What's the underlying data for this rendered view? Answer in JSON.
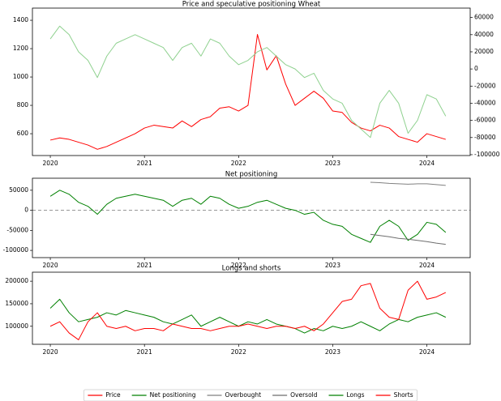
{
  "chart_data": [
    {
      "type": "line",
      "title": "Price and speculative positioning Wheat",
      "x": [
        2020.0,
        2020.1,
        2020.2,
        2020.3,
        2020.4,
        2020.5,
        2020.6,
        2020.7,
        2020.8,
        2020.9,
        2021.0,
        2021.1,
        2021.2,
        2021.3,
        2021.4,
        2021.5,
        2021.6,
        2021.7,
        2021.8,
        2021.9,
        2022.0,
        2022.1,
        2022.2,
        2022.3,
        2022.4,
        2022.5,
        2022.6,
        2022.7,
        2022.8,
        2022.9,
        2023.0,
        2023.1,
        2023.2,
        2023.3,
        2023.4,
        2023.5,
        2023.6,
        2023.7,
        2023.8,
        2023.9,
        2024.0,
        2024.1,
        2024.2
      ],
      "xlim": [
        2019.81,
        2024.46
      ],
      "xticks": [
        2020,
        2021,
        2022,
        2023,
        2024
      ],
      "ylim": [
        446,
        1486
      ],
      "yticks": [
        600,
        800,
        1000,
        1200,
        1400
      ],
      "y2lim": [
        -101000,
        71000
      ],
      "y2ticks": [
        -100000,
        -80000,
        -60000,
        -40000,
        -20000,
        0,
        20000,
        40000,
        60000
      ],
      "series": [
        {
          "name": "Price",
          "color": "#ff0000",
          "values": [
            555,
            570,
            560,
            540,
            520,
            490,
            510,
            540,
            570,
            600,
            640,
            660,
            650,
            640,
            690,
            650,
            700,
            720,
            780,
            790,
            760,
            800,
            1300,
            1050,
            1150,
            950,
            800,
            850,
            900,
            850,
            760,
            750,
            680,
            640,
            620,
            660,
            640,
            580,
            560,
            540,
            600,
            580,
            560
          ]
        },
        {
          "name": "Net positioning",
          "color": "#8fd18f",
          "axis": "y2",
          "values": [
            35000,
            50000,
            40000,
            20000,
            10000,
            -10000,
            15000,
            30000,
            35000,
            40000,
            35000,
            30000,
            25000,
            10000,
            25000,
            30000,
            15000,
            35000,
            30000,
            15000,
            5000,
            10000,
            20000,
            25000,
            15000,
            5000,
            0,
            -10000,
            -5000,
            -25000,
            -35000,
            -40000,
            -60000,
            -70000,
            -80000,
            -40000,
            -25000,
            -40000,
            -75000,
            -60000,
            -30000,
            -35000,
            -55000
          ]
        }
      ]
    },
    {
      "type": "line",
      "title": "Net positioning",
      "x": [
        2020.0,
        2020.1,
        2020.2,
        2020.3,
        2020.4,
        2020.5,
        2020.6,
        2020.7,
        2020.8,
        2020.9,
        2021.0,
        2021.1,
        2021.2,
        2021.3,
        2021.4,
        2021.5,
        2021.6,
        2021.7,
        2021.8,
        2021.9,
        2022.0,
        2022.1,
        2022.2,
        2022.3,
        2022.4,
        2022.5,
        2022.6,
        2022.7,
        2022.8,
        2022.9,
        2023.0,
        2023.1,
        2023.2,
        2023.3,
        2023.4,
        2023.5,
        2023.6,
        2023.7,
        2023.8,
        2023.9,
        2024.0,
        2024.1,
        2024.2
      ],
      "xlim": [
        2019.81,
        2024.46
      ],
      "xticks": [
        2020,
        2021,
        2022,
        2023,
        2024
      ],
      "ylim": [
        -118000,
        80000
      ],
      "yticks": [
        -100000,
        -50000,
        0,
        50000
      ],
      "reference_line": 0,
      "series": [
        {
          "name": "Net positioning",
          "color": "#008000",
          "values": [
            35000,
            50000,
            40000,
            20000,
            10000,
            -10000,
            15000,
            30000,
            35000,
            40000,
            35000,
            30000,
            25000,
            10000,
            25000,
            30000,
            15000,
            35000,
            30000,
            15000,
            5000,
            10000,
            20000,
            25000,
            15000,
            5000,
            0,
            -10000,
            -5000,
            -25000,
            -35000,
            -40000,
            -60000,
            -70000,
            -80000,
            -40000,
            -25000,
            -40000,
            -75000,
            -60000,
            -30000,
            -35000,
            -55000
          ]
        },
        {
          "name": "Overbought",
          "color": "#808080",
          "values": [
            null,
            null,
            null,
            null,
            null,
            null,
            null,
            null,
            null,
            null,
            null,
            null,
            null,
            null,
            null,
            null,
            null,
            null,
            null,
            null,
            null,
            null,
            null,
            null,
            null,
            null,
            null,
            null,
            null,
            null,
            null,
            null,
            null,
            null,
            70000,
            69000,
            67000,
            66000,
            65000,
            66000,
            66000,
            64000,
            62000
          ]
        },
        {
          "name": "Oversold",
          "color": "#6e6e6e",
          "values": [
            null,
            null,
            null,
            null,
            null,
            null,
            null,
            null,
            null,
            null,
            null,
            null,
            null,
            null,
            null,
            null,
            null,
            null,
            null,
            null,
            null,
            null,
            null,
            null,
            null,
            null,
            null,
            null,
            null,
            null,
            null,
            null,
            null,
            null,
            -60000,
            -63000,
            -66000,
            -70000,
            -72000,
            -75000,
            -78000,
            -82000,
            -85000
          ]
        }
      ]
    },
    {
      "type": "line",
      "title": "Longs and shorts",
      "x": [
        2020.0,
        2020.1,
        2020.2,
        2020.3,
        2020.4,
        2020.5,
        2020.6,
        2020.7,
        2020.8,
        2020.9,
        2021.0,
        2021.1,
        2021.2,
        2021.3,
        2021.4,
        2021.5,
        2021.6,
        2021.7,
        2021.8,
        2021.9,
        2022.0,
        2022.1,
        2022.2,
        2022.3,
        2022.4,
        2022.5,
        2022.6,
        2022.7,
        2022.8,
        2022.9,
        2023.0,
        2023.1,
        2023.2,
        2023.3,
        2023.4,
        2023.5,
        2023.6,
        2023.7,
        2023.8,
        2023.9,
        2024.0,
        2024.1,
        2024.2
      ],
      "xlim": [
        2019.81,
        2024.46
      ],
      "xticks": [
        2020,
        2021,
        2022,
        2023,
        2024
      ],
      "ylim": [
        60000,
        220000
      ],
      "yticks": [
        100000,
        150000,
        200000
      ],
      "series": [
        {
          "name": "Longs",
          "color": "#008000",
          "values": [
            140000,
            160000,
            130000,
            110000,
            115000,
            120000,
            130000,
            125000,
            135000,
            130000,
            125000,
            120000,
            110000,
            105000,
            115000,
            125000,
            100000,
            110000,
            120000,
            110000,
            100000,
            110000,
            105000,
            115000,
            105000,
            100000,
            95000,
            85000,
            95000,
            90000,
            100000,
            95000,
            100000,
            110000,
            100000,
            90000,
            105000,
            115000,
            110000,
            120000,
            125000,
            130000,
            120000
          ]
        },
        {
          "name": "Shorts",
          "color": "#ff0000",
          "values": [
            100000,
            110000,
            85000,
            70000,
            110000,
            130000,
            100000,
            95000,
            100000,
            90000,
            95000,
            95000,
            90000,
            105000,
            100000,
            95000,
            95000,
            90000,
            95000,
            100000,
            100000,
            105000,
            100000,
            95000,
            100000,
            100000,
            95000,
            100000,
            90000,
            105000,
            130000,
            155000,
            160000,
            190000,
            195000,
            140000,
            120000,
            115000,
            180000,
            200000,
            160000,
            165000,
            175000
          ]
        }
      ]
    }
  ]
}
